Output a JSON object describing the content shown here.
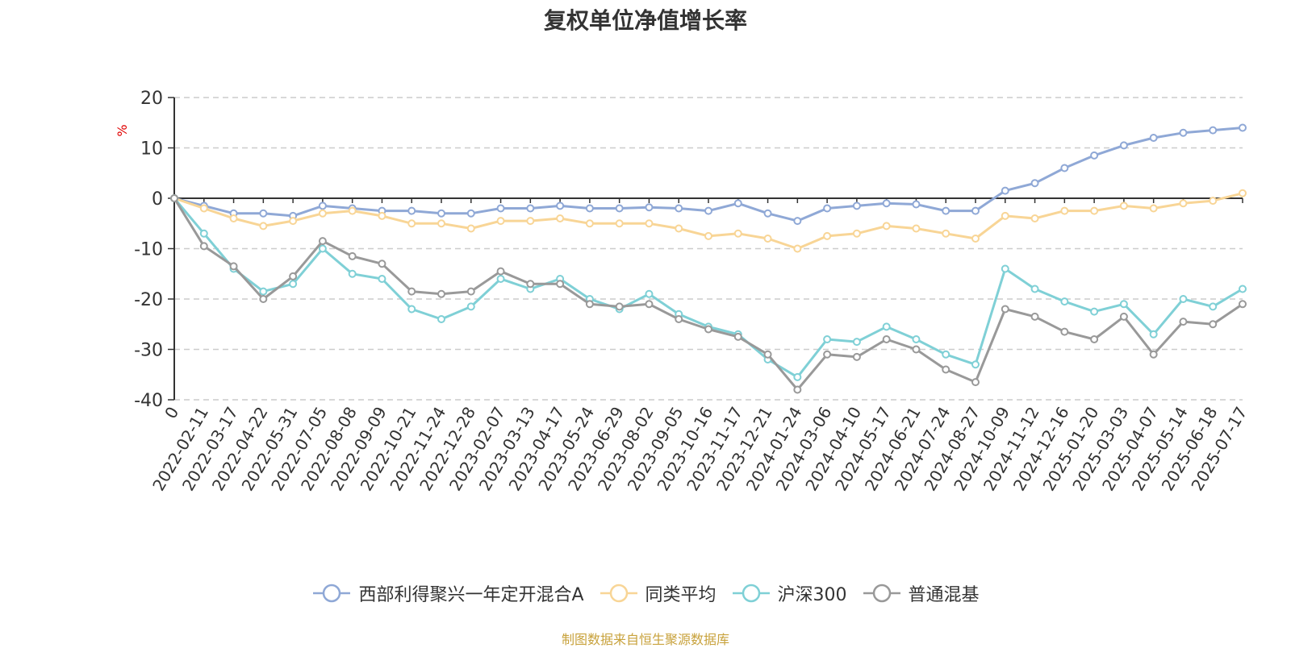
{
  "title": "复权单位净值增长率",
  "source_note": "制图数据来自恒生聚源数据库",
  "colors": {
    "fund": "#8fa8d6",
    "peer_avg": "#f8d596",
    "hs300": "#7fd0d6",
    "mixed": "#999999",
    "unit_label": "#e00000"
  },
  "chart_data": {
    "type": "line",
    "title": "复权单位净值增长率",
    "ylabel": "%",
    "xlabel": "",
    "ylim": [
      -40,
      20
    ],
    "yticks": [
      20,
      10,
      0,
      -10,
      -20,
      -30,
      -40
    ],
    "grid": true,
    "legend_position": "bottom",
    "categories": [
      "0",
      "2022-02-11",
      "2022-03-17",
      "2022-04-22",
      "2022-05-31",
      "2022-07-05",
      "2022-08-08",
      "2022-09-09",
      "2022-10-21",
      "2022-11-24",
      "2022-12-28",
      "2023-02-07",
      "2023-03-13",
      "2023-04-17",
      "2023-05-24",
      "2023-06-29",
      "2023-08-02",
      "2023-09-05",
      "2023-10-16",
      "2023-11-17",
      "2023-12-21",
      "2024-01-24",
      "2024-03-06",
      "2024-04-10",
      "2024-05-17",
      "2024-06-21",
      "2024-07-24",
      "2024-08-27",
      "2024-10-09",
      "2024-11-12",
      "2024-12-16",
      "2025-01-20",
      "2025-03-03",
      "2025-04-07",
      "2025-05-14",
      "2025-06-18",
      "2025-07-17"
    ],
    "series": [
      {
        "name": "西部利得聚兴一年定开混合A",
        "color": "#8fa8d6",
        "values": [
          0,
          -1.5,
          -3,
          -3,
          -3.5,
          -1.5,
          -2,
          -2.5,
          -2.5,
          -3,
          -3,
          -2,
          -2,
          -1.5,
          -2,
          -2,
          -1.8,
          -2,
          -2.5,
          -1,
          -3,
          -4.5,
          -2,
          -1.5,
          -1,
          -1.2,
          -2.5,
          -2.5,
          1.5,
          3,
          6,
          8.5,
          10.5,
          12,
          13,
          13.5,
          14
        ]
      },
      {
        "name": "同类平均",
        "color": "#f8d596",
        "values": [
          0,
          -2,
          -4,
          -5.5,
          -4.5,
          -3,
          -2.5,
          -3.5,
          -5,
          -5,
          -6,
          -4.5,
          -4.5,
          -4,
          -5,
          -5,
          -5,
          -6,
          -7.5,
          -7,
          -8,
          -10,
          -7.5,
          -7,
          -5.5,
          -6,
          -7,
          -8,
          -3.5,
          -4,
          -2.5,
          -2.5,
          -1.5,
          -2,
          -1,
          -0.5,
          1
        ]
      },
      {
        "name": "沪深300",
        "color": "#7fd0d6",
        "values": [
          0,
          -7,
          -14,
          -18.5,
          -17,
          -10,
          -15,
          -16,
          -22,
          -24,
          -21.5,
          -16,
          -18,
          -16,
          -20,
          -22,
          -19,
          -23,
          -25.5,
          -27,
          -32,
          -35.5,
          -28,
          -28.5,
          -25.5,
          -28,
          -31,
          -33,
          -14,
          -18,
          -20.5,
          -22.5,
          -21,
          -27,
          -20,
          -21.5,
          -18
        ]
      },
      {
        "name": "普通混基",
        "color": "#999999",
        "values": [
          0,
          -9.5,
          -13.5,
          -20,
          -15.5,
          -8.5,
          -11.5,
          -13,
          -18.5,
          -19,
          -18.5,
          -14.5,
          -17,
          -17,
          -21,
          -21.5,
          -21,
          -24,
          -26,
          -27.5,
          -31,
          -38,
          -31,
          -31.5,
          -28,
          -30,
          -34,
          -36.5,
          -22,
          -23.5,
          -26.5,
          -28,
          -23.5,
          -31,
          -24.5,
          -25,
          -21
        ]
      }
    ]
  }
}
